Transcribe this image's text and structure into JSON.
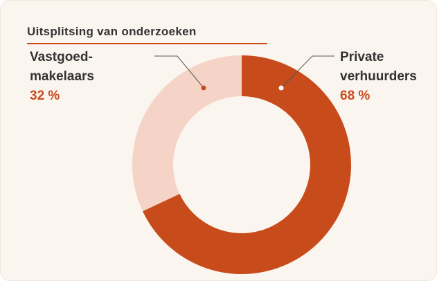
{
  "chart_data": {
    "type": "donut",
    "title": "Uitsplitsing van onderzoeken",
    "categories": [
      "Private verhuurders",
      "Vastgoed-makelaars"
    ],
    "values": [
      68,
      32
    ],
    "value_labels": [
      "68 %",
      "32 %"
    ],
    "colors": [
      "#c84b1b",
      "#f5d4c7"
    ]
  }
}
